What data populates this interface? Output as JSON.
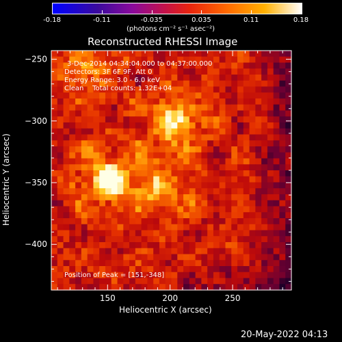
{
  "colorbar": {
    "ticks": [
      "-0.18",
      "-0.11",
      "-0.035",
      "0.035",
      "0.11",
      "0.18"
    ],
    "label": "(photons cm⁻² s⁻¹ asec⁻²)"
  },
  "chart_data": {
    "type": "heatmap",
    "title": "Reconstructed RHESSI Image",
    "xlabel": "Heliocentric X (arcsec)",
    "ylabel": "Heliocentric Y (arcsec)",
    "xlim": [
      105,
      297
    ],
    "ylim": [
      -437,
      -243
    ],
    "xticks": [
      150,
      200,
      250
    ],
    "yticks": [
      -250,
      -300,
      -350,
      -400
    ],
    "colormap": "red-temperature",
    "value_range": [
      -0.18,
      0.18
    ],
    "peak": [
      151,
      -348
    ],
    "sources": [
      {
        "x": 151,
        "y": -348,
        "intensity": 1.0
      },
      {
        "x": 203,
        "y": -302,
        "intensity": 0.82
      },
      {
        "x": 193,
        "y": -355,
        "intensity": 0.6
      },
      {
        "x": 132,
        "y": -258,
        "intensity": 0.45
      }
    ],
    "annotations": [
      "3-Dec-2014 04:34:04.000 to 04:37:00.000",
      "Detectors: 3F 6F 9F, Att 0",
      "Energy Range: 3.0 - 6.0 keV",
      "Clean    Total counts: 1.32E+04",
      "Position of Peak = [151,-348]"
    ]
  },
  "timestamp": "20-May-2022 04:13"
}
